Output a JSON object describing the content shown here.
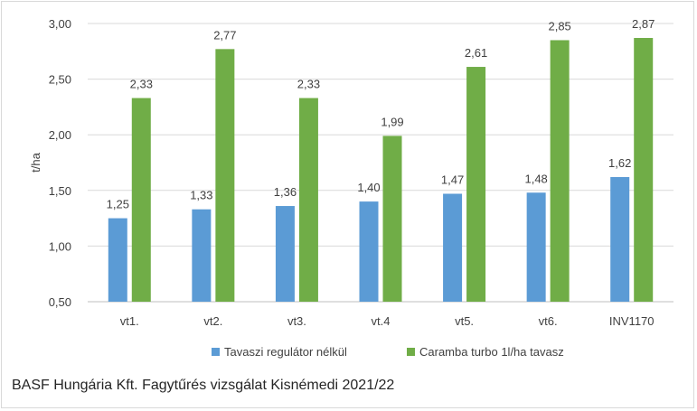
{
  "chart_data": {
    "type": "bar",
    "categories": [
      "vt1.",
      "vt2.",
      "vt3.",
      "vt.4",
      "vt5.",
      "vt6.",
      "INV1170"
    ],
    "series": [
      {
        "name": "Tavaszi regulátor nélkül",
        "values": [
          1.25,
          1.33,
          1.36,
          1.4,
          1.47,
          1.48,
          1.62
        ],
        "labels": [
          "1,25",
          "1,33",
          "1,36",
          "1,40",
          "1,47",
          "1,48",
          "1,62"
        ],
        "color": "#5b9bd5"
      },
      {
        "name": "Caramba turbo 1l/ha tavasz",
        "values": [
          2.33,
          2.77,
          2.33,
          1.99,
          2.61,
          2.85,
          2.87
        ],
        "labels": [
          "2,33",
          "2,77",
          "2,33",
          "1,99",
          "2,61",
          "2,85",
          "2,87"
        ],
        "color": "#70ad47"
      }
    ],
    "ylabel": "t/ha",
    "ylim": [
      0.5,
      3.0
    ],
    "yticks": [
      0.5,
      1.0,
      1.5,
      2.0,
      2.5,
      3.0
    ],
    "ytick_labels": [
      "0,50",
      "1,00",
      "1,50",
      "2,00",
      "2,50",
      "3,00"
    ],
    "grid": true,
    "legend_position": "bottom",
    "gridline_color": "#d9d9d9",
    "axis_color": "#bfbfbf"
  },
  "footnote": "BASF Hungária Kft. Fagytűrés vizsgálat Kisnémedi 2021/22"
}
